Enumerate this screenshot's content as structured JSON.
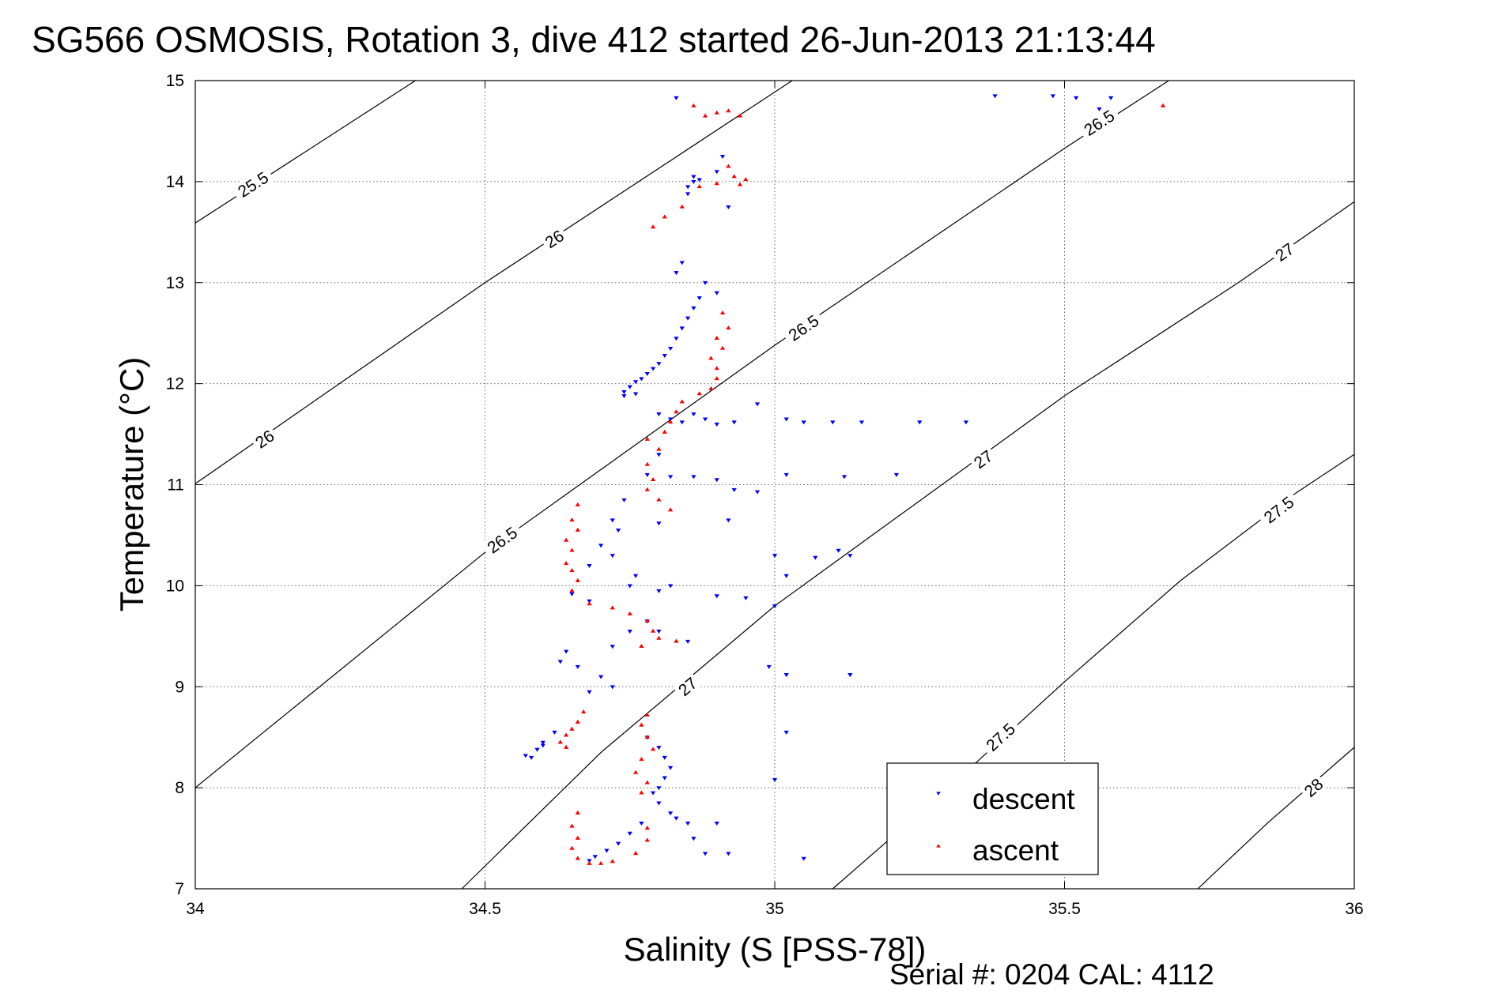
{
  "chart_data": {
    "type": "scatter",
    "title": "SG566 OSMOSIS, Rotation 3, dive 412 started 26-Jun-2013 21:13:44",
    "xlabel": "Salinity (S [PSS-78])",
    "ylabel": "Temperature (°C)",
    "xlim": [
      34,
      36
    ],
    "ylim": [
      7,
      15
    ],
    "xticks": [
      "34",
      "34.5",
      "35",
      "35.5",
      "36"
    ],
    "yticks": [
      "7",
      "8",
      "9",
      "10",
      "11",
      "12",
      "13",
      "14",
      "15"
    ],
    "grid": true,
    "legend_position": "bottom-right",
    "footer": "Serial #: 0204  CAL: 4112",
    "density_contours": [
      {
        "label": "25.5",
        "points": [
          [
            34.0,
            13.59
          ],
          [
            34.38,
            15.0
          ]
        ],
        "label_at": [
          34.1,
          13.97
        ]
      },
      {
        "label": "26",
        "points": [
          [
            34.0,
            11.01
          ],
          [
            34.5,
            13.0
          ],
          [
            35.03,
            15.0
          ]
        ],
        "label_at": [
          34.62,
          13.43
        ]
      },
      {
        "label": "26",
        "points": [
          [
            34.0,
            11.01
          ],
          [
            34.5,
            13.0
          ],
          [
            35.03,
            15.0
          ]
        ],
        "label_at": [
          34.12,
          11.45
        ]
      },
      {
        "label": "26.5",
        "points": [
          [
            34.0,
            8.0
          ],
          [
            34.5,
            10.33
          ],
          [
            35.0,
            12.38
          ],
          [
            35.3,
            13.55
          ],
          [
            35.5,
            14.33
          ],
          [
            35.68,
            15.0
          ]
        ],
        "label_at": [
          34.53,
          10.45
        ]
      },
      {
        "label": "26.5",
        "points": [
          [
            34.0,
            8.0
          ],
          [
            34.5,
            10.33
          ],
          [
            35.0,
            12.38
          ],
          [
            35.3,
            13.55
          ],
          [
            35.5,
            14.33
          ],
          [
            35.68,
            15.0
          ]
        ],
        "label_at": [
          35.05,
          12.55
        ]
      },
      {
        "label": "26.5",
        "points": [
          [
            34.0,
            8.0
          ],
          [
            34.5,
            10.33
          ],
          [
            35.0,
            12.38
          ],
          [
            35.3,
            13.55
          ],
          [
            35.5,
            14.33
          ],
          [
            35.68,
            15.0
          ]
        ],
        "label_at": [
          35.56,
          14.58
        ]
      },
      {
        "label": "27",
        "points": [
          [
            34.46,
            7.0
          ],
          [
            34.7,
            8.35
          ],
          [
            35.0,
            9.8
          ],
          [
            35.5,
            11.88
          ],
          [
            35.8,
            13.0
          ],
          [
            36.0,
            13.8
          ]
        ],
        "label_at": [
          34.85,
          9.0
        ]
      },
      {
        "label": "27",
        "points": [
          [
            34.46,
            7.0
          ],
          [
            34.7,
            8.35
          ],
          [
            35.0,
            9.8
          ],
          [
            35.5,
            11.88
          ],
          [
            35.8,
            13.0
          ],
          [
            36.0,
            13.8
          ]
        ],
        "label_at": [
          35.36,
          11.25
        ]
      },
      {
        "label": "27",
        "points": [
          [
            34.46,
            7.0
          ],
          [
            34.7,
            8.35
          ],
          [
            35.0,
            9.8
          ],
          [
            35.5,
            11.88
          ],
          [
            35.8,
            13.0
          ],
          [
            36.0,
            13.8
          ]
        ],
        "label_at": [
          35.88,
          13.3
        ]
      },
      {
        "label": "27.5",
        "points": [
          [
            35.1,
            7.0
          ],
          [
            35.3,
            8.0
          ],
          [
            35.5,
            9.05
          ],
          [
            35.7,
            10.05
          ],
          [
            35.9,
            10.92
          ],
          [
            36.0,
            11.3
          ]
        ],
        "label_at": [
          35.39,
          8.5
        ]
      },
      {
        "label": "27.5",
        "points": [
          [
            35.1,
            7.0
          ],
          [
            35.3,
            8.0
          ],
          [
            35.5,
            9.05
          ],
          [
            35.7,
            10.05
          ],
          [
            35.9,
            10.92
          ],
          [
            36.0,
            11.3
          ]
        ],
        "label_at": [
          35.87,
          10.75
        ]
      },
      {
        "label": "28",
        "points": [
          [
            35.73,
            7.0
          ],
          [
            35.85,
            7.65
          ],
          [
            36.0,
            8.4
          ]
        ],
        "label_at": [
          35.93,
          8.0
        ]
      }
    ],
    "series": [
      {
        "name": "descent",
        "color": "#0000ff",
        "marker": "triangle-down",
        "points": [
          [
            34.83,
            14.83
          ],
          [
            35.38,
            14.85
          ],
          [
            35.48,
            14.85
          ],
          [
            35.52,
            14.83
          ],
          [
            35.58,
            14.83
          ],
          [
            35.56,
            14.72
          ],
          [
            34.86,
            14.05
          ],
          [
            34.86,
            14.0
          ],
          [
            34.85,
            13.95
          ],
          [
            34.87,
            14.02
          ],
          [
            34.91,
            14.25
          ],
          [
            34.9,
            14.1
          ],
          [
            34.92,
            13.75
          ],
          [
            34.85,
            13.88
          ],
          [
            34.84,
            13.2
          ],
          [
            34.83,
            13.1
          ],
          [
            34.88,
            13.0
          ],
          [
            34.9,
            12.9
          ],
          [
            34.87,
            12.85
          ],
          [
            34.86,
            12.75
          ],
          [
            34.85,
            12.65
          ],
          [
            34.84,
            12.55
          ],
          [
            34.83,
            12.45
          ],
          [
            34.82,
            12.35
          ],
          [
            34.81,
            12.28
          ],
          [
            34.8,
            12.2
          ],
          [
            34.79,
            12.15
          ],
          [
            34.78,
            12.1
          ],
          [
            34.77,
            12.05
          ],
          [
            34.76,
            12.02
          ],
          [
            34.75,
            11.97
          ],
          [
            34.74,
            11.92
          ],
          [
            34.74,
            11.88
          ],
          [
            34.76,
            11.9
          ],
          [
            34.8,
            11.7
          ],
          [
            34.82,
            11.65
          ],
          [
            34.84,
            11.62
          ],
          [
            34.86,
            11.7
          ],
          [
            34.88,
            11.65
          ],
          [
            34.9,
            11.6
          ],
          [
            34.93,
            11.62
          ],
          [
            34.97,
            11.8
          ],
          [
            35.02,
            11.65
          ],
          [
            35.05,
            11.62
          ],
          [
            35.1,
            11.62
          ],
          [
            35.15,
            11.62
          ],
          [
            35.25,
            11.62
          ],
          [
            35.33,
            11.62
          ],
          [
            34.8,
            11.3
          ],
          [
            34.78,
            11.1
          ],
          [
            34.82,
            11.08
          ],
          [
            34.86,
            11.08
          ],
          [
            34.9,
            11.05
          ],
          [
            34.93,
            10.95
          ],
          [
            34.97,
            10.93
          ],
          [
            35.02,
            11.1
          ],
          [
            35.12,
            11.08
          ],
          [
            35.21,
            11.1
          ],
          [
            34.74,
            10.85
          ],
          [
            34.72,
            10.65
          ],
          [
            34.73,
            10.55
          ],
          [
            34.8,
            10.62
          ],
          [
            34.92,
            10.65
          ],
          [
            34.7,
            10.4
          ],
          [
            34.72,
            10.3
          ],
          [
            34.76,
            10.1
          ],
          [
            34.75,
            10.0
          ],
          [
            34.8,
            9.95
          ],
          [
            34.82,
            10.0
          ],
          [
            34.68,
            10.2
          ],
          [
            34.65,
            9.92
          ],
          [
            34.68,
            9.85
          ],
          [
            34.9,
            9.9
          ],
          [
            34.95,
            9.88
          ],
          [
            35.0,
            9.8
          ],
          [
            35.02,
            10.1
          ],
          [
            35.07,
            10.28
          ],
          [
            35.11,
            10.35
          ],
          [
            35.13,
            10.3
          ],
          [
            35.0,
            10.3
          ],
          [
            34.78,
            9.65
          ],
          [
            34.8,
            9.55
          ],
          [
            34.85,
            9.45
          ],
          [
            34.75,
            9.55
          ],
          [
            34.72,
            9.4
          ],
          [
            34.64,
            9.35
          ],
          [
            34.63,
            9.25
          ],
          [
            34.66,
            9.2
          ],
          [
            34.7,
            9.1
          ],
          [
            34.72,
            9.0
          ],
          [
            34.68,
            8.95
          ],
          [
            34.99,
            9.2
          ],
          [
            35.02,
            9.12
          ],
          [
            35.13,
            9.12
          ],
          [
            34.62,
            8.55
          ],
          [
            34.6,
            8.45
          ],
          [
            34.59,
            8.38
          ],
          [
            34.58,
            8.3
          ],
          [
            34.57,
            8.32
          ],
          [
            34.6,
            8.42
          ],
          [
            34.78,
            8.5
          ],
          [
            34.8,
            8.4
          ],
          [
            34.81,
            8.3
          ],
          [
            34.82,
            8.2
          ],
          [
            34.81,
            8.1
          ],
          [
            34.8,
            8.0
          ],
          [
            34.79,
            7.95
          ],
          [
            34.8,
            7.85
          ],
          [
            34.82,
            7.75
          ],
          [
            34.83,
            7.7
          ],
          [
            34.85,
            7.65
          ],
          [
            34.77,
            7.65
          ],
          [
            34.75,
            7.55
          ],
          [
            34.73,
            7.45
          ],
          [
            34.71,
            7.38
          ],
          [
            34.69,
            7.32
          ],
          [
            34.68,
            7.28
          ],
          [
            34.86,
            7.5
          ],
          [
            34.88,
            7.35
          ],
          [
            34.9,
            7.65
          ],
          [
            34.92,
            7.35
          ],
          [
            35.0,
            8.08
          ],
          [
            35.02,
            8.55
          ],
          [
            35.05,
            7.3
          ]
        ]
      },
      {
        "name": "ascent",
        "color": "#ff0000",
        "marker": "triangle-up",
        "points": [
          [
            34.88,
            14.65
          ],
          [
            34.9,
            14.68
          ],
          [
            34.92,
            14.7
          ],
          [
            34.94,
            14.65
          ],
          [
            34.86,
            14.75
          ],
          [
            35.67,
            14.75
          ],
          [
            34.92,
            14.15
          ],
          [
            34.93,
            14.05
          ],
          [
            34.95,
            14.02
          ],
          [
            34.94,
            13.97
          ],
          [
            34.9,
            13.98
          ],
          [
            34.87,
            13.95
          ],
          [
            34.84,
            13.75
          ],
          [
            34.81,
            13.65
          ],
          [
            34.79,
            13.55
          ],
          [
            34.91,
            12.7
          ],
          [
            34.92,
            12.55
          ],
          [
            34.9,
            12.45
          ],
          [
            34.91,
            12.35
          ],
          [
            34.89,
            12.25
          ],
          [
            34.9,
            12.15
          ],
          [
            34.9,
            12.05
          ],
          [
            34.89,
            11.95
          ],
          [
            34.87,
            11.9
          ],
          [
            34.84,
            11.82
          ],
          [
            34.83,
            11.72
          ],
          [
            34.82,
            11.62
          ],
          [
            34.81,
            11.52
          ],
          [
            34.78,
            11.45
          ],
          [
            34.8,
            11.35
          ],
          [
            34.78,
            11.2
          ],
          [
            34.79,
            11.05
          ],
          [
            34.78,
            10.95
          ],
          [
            34.8,
            10.85
          ],
          [
            34.82,
            10.75
          ],
          [
            34.66,
            10.8
          ],
          [
            34.65,
            10.65
          ],
          [
            34.66,
            10.55
          ],
          [
            34.64,
            10.45
          ],
          [
            34.65,
            10.35
          ],
          [
            34.64,
            10.22
          ],
          [
            34.65,
            10.15
          ],
          [
            34.66,
            10.05
          ],
          [
            34.65,
            9.95
          ],
          [
            34.68,
            9.82
          ],
          [
            34.72,
            9.78
          ],
          [
            34.75,
            9.72
          ],
          [
            34.78,
            9.65
          ],
          [
            34.79,
            9.55
          ],
          [
            34.8,
            9.48
          ],
          [
            34.83,
            9.45
          ],
          [
            34.77,
            9.4
          ],
          [
            34.67,
            8.75
          ],
          [
            34.66,
            8.65
          ],
          [
            34.65,
            8.58
          ],
          [
            34.64,
            8.52
          ],
          [
            34.63,
            8.45
          ],
          [
            34.64,
            8.4
          ],
          [
            34.78,
            8.72
          ],
          [
            34.77,
            8.62
          ],
          [
            34.78,
            8.5
          ],
          [
            34.79,
            8.38
          ],
          [
            34.77,
            8.28
          ],
          [
            34.76,
            8.15
          ],
          [
            34.78,
            8.05
          ],
          [
            34.77,
            7.95
          ],
          [
            34.66,
            7.75
          ],
          [
            34.65,
            7.62
          ],
          [
            34.66,
            7.5
          ],
          [
            34.65,
            7.4
          ],
          [
            34.66,
            7.3
          ],
          [
            34.68,
            7.25
          ],
          [
            34.7,
            7.25
          ],
          [
            34.72,
            7.27
          ],
          [
            34.76,
            7.35
          ],
          [
            34.78,
            7.48
          ],
          [
            34.78,
            7.6
          ]
        ]
      }
    ]
  }
}
